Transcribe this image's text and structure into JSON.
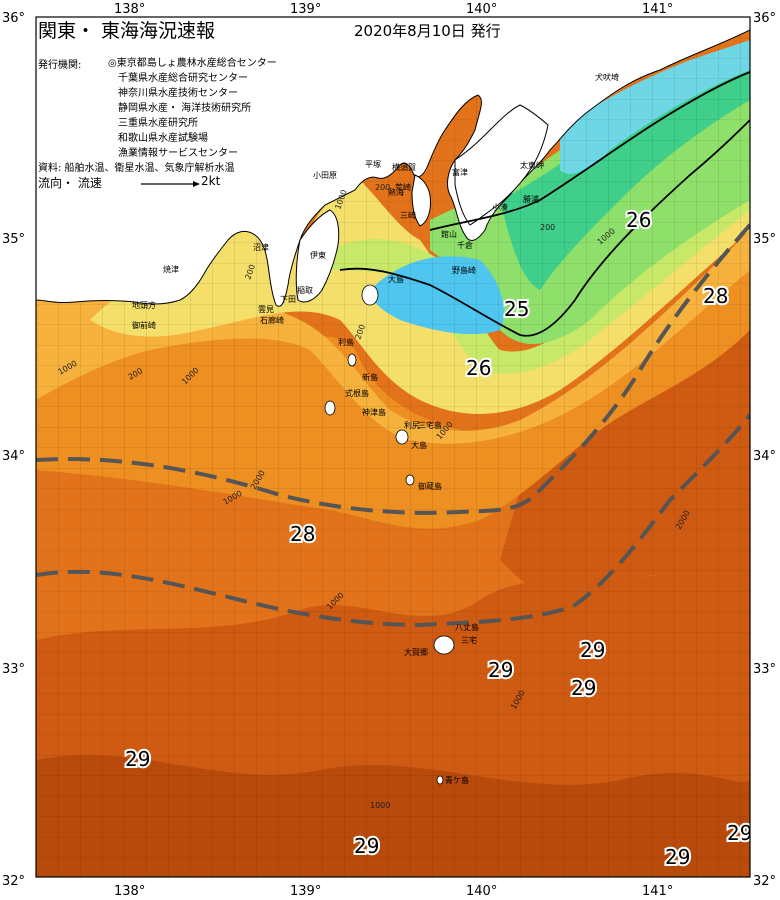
{
  "header": {
    "title": "関東・ 東海海況速報",
    "date": "2020年8月10日 発行",
    "issuers_label": "発行機関:",
    "issuers": [
      "◎東京都島しょ農林水産総合センター",
      "千葉県水産総合研究センター",
      "神奈川県水産技術センター",
      "静岡県水産・ 海洋技術研究所",
      "三重県水産研究所",
      "和歌山県水産試験場",
      "漁業情報サービスセンター"
    ],
    "sources": "資料: 船舶水温、衛星水温、気象庁解析水温",
    "flow_label": "流向・ 流速",
    "flow_value": "2kt"
  },
  "axes": {
    "lon_labels": [
      "138°",
      "139°",
      "140°",
      "141°"
    ],
    "lat_labels": [
      "36°",
      "35°",
      "34°",
      "33°",
      "32°"
    ]
  },
  "isotherm_labels": [
    "25",
    "26",
    "26",
    "28",
    "28",
    "29",
    "29",
    "29",
    "29",
    "29",
    "29",
    "29"
  ],
  "place_names": [
    "犬吠埼",
    "太東岬",
    "勝浦",
    "小湊",
    "館山",
    "千倉",
    "野島崎",
    "大島",
    "平塚",
    "横須賀",
    "富津",
    "小田原",
    "熱海",
    "荒崎",
    "三崎",
    "伊東",
    "稲取",
    "下田",
    "雲見",
    "石廊崎",
    "焼津",
    "沼津",
    "地頭方",
    "御前崎",
    "利島",
    "新島",
    "式根島",
    "神津島",
    "三宅島",
    "御蔵島",
    "八丈島",
    "三宅",
    "青ケ島",
    "大賀郷",
    "利尻",
    "大島"
  ],
  "depth_labels": [
    "200",
    "1000",
    "200",
    "1000",
    "200",
    "1000",
    "2000",
    "1000",
    "200",
    "200",
    "1000",
    "1000",
    "2000",
    "1000",
    "1000",
    "1000"
  ],
  "colors": {
    "temp_23": "#6fd6e6",
    "temp_24": "#4ec6f0",
    "temp_25": "#3fcf8a",
    "temp_26": "#8fe06a",
    "temp_26_5": "#c8e86a",
    "temp_27": "#f3df6a",
    "temp_27_5": "#f6b23c",
    "temp_28": "#ee8f22",
    "temp_28_5": "#e2731a",
    "temp_29": "#cf5a12",
    "temp_29_5": "#b84a0c",
    "land": "#ffffff",
    "kuroshio_axis": "#555555"
  }
}
